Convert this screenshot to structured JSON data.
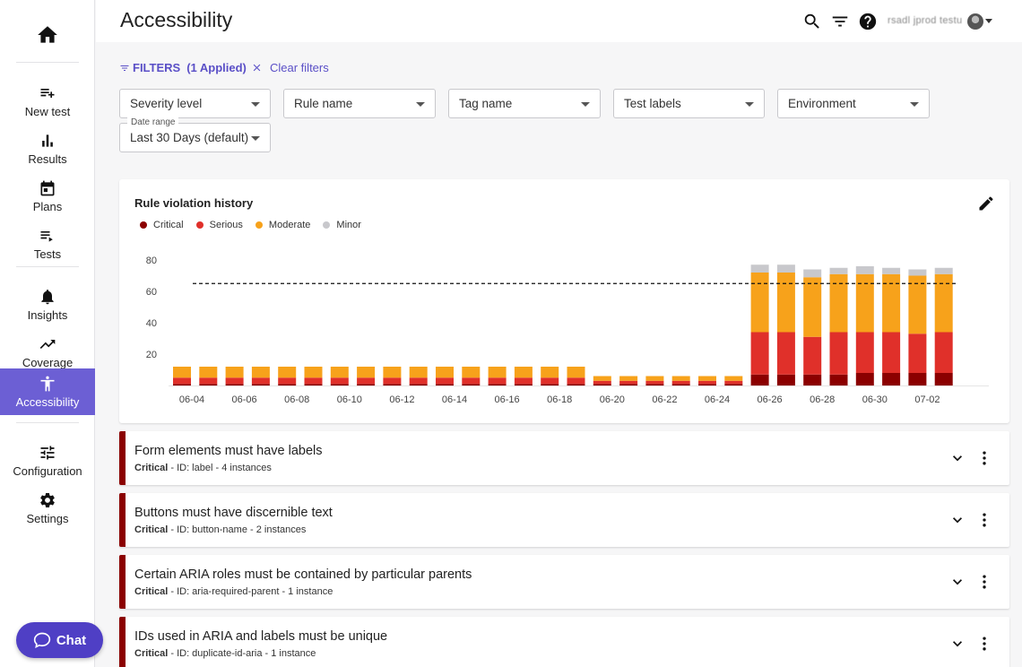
{
  "sidebar": {
    "home_icon": "home-icon",
    "items": [
      {
        "label": "New test",
        "icon": "playlist-add-icon"
      },
      {
        "label": "Results",
        "icon": "bar-chart-icon"
      },
      {
        "label": "Plans",
        "icon": "calendar-icon"
      },
      {
        "label": "Tests",
        "icon": "list-play-icon"
      },
      {
        "label": "Insights",
        "icon": "bell-icon"
      },
      {
        "label": "Coverage",
        "icon": "trending-up-icon"
      },
      {
        "label": "Accessibility",
        "icon": "accessibility-icon",
        "active": true
      },
      {
        "label": "Configuration",
        "icon": "tune-icon"
      },
      {
        "label": "Settings",
        "icon": "gear-icon"
      }
    ],
    "chat_label": "Chat"
  },
  "header": {
    "title": "Accessibility",
    "user_name": "rsadl jprod testu"
  },
  "filters": {
    "link_label": "FILTERS",
    "applied": "(1 Applied)",
    "clear_label": "Clear filters",
    "selects": [
      {
        "value": "Severity level"
      },
      {
        "value": "Rule name"
      },
      {
        "value": "Tag name"
      },
      {
        "value": "Test labels"
      },
      {
        "value": "Environment"
      }
    ],
    "date_range": {
      "label": "Date range",
      "value": "Last 30 Days (default)"
    }
  },
  "chart": {
    "title": "Rule violation history",
    "colors": {
      "critical": "#8b0000",
      "serious": "#e0302a",
      "moderate": "#f7a21b",
      "minor": "#c8c8cc"
    }
  },
  "chart_data": {
    "type": "bar",
    "stacked": true,
    "title": "Rule violation history",
    "legend": "top-left",
    "grid": false,
    "ylim": [
      0,
      80
    ],
    "yticks": [
      20,
      40,
      60,
      80
    ],
    "threshold": 65,
    "categories": [
      "06-04",
      "06-05",
      "06-06",
      "06-07",
      "06-08",
      "06-09",
      "06-10",
      "06-11",
      "06-12",
      "06-13",
      "06-14",
      "06-15",
      "06-16",
      "06-17",
      "06-18",
      "06-19",
      "06-20",
      "06-21",
      "06-22",
      "06-23",
      "06-24",
      "06-25",
      "06-26",
      "06-27",
      "06-28",
      "06-29",
      "06-30",
      "07-01",
      "07-02",
      "07-03"
    ],
    "xtick_labels": [
      "06-04",
      "06-06",
      "06-08",
      "06-10",
      "06-12",
      "06-14",
      "06-16",
      "06-18",
      "06-20",
      "06-22",
      "06-24",
      "06-26",
      "06-28",
      "06-30",
      "07-02"
    ],
    "series": [
      {
        "name": "Critical",
        "values": [
          1,
          1,
          1,
          1,
          1,
          1,
          1,
          1,
          1,
          1,
          1,
          1,
          1,
          1,
          1,
          1,
          1,
          1,
          1,
          1,
          1,
          1,
          7,
          7,
          7,
          7,
          8,
          8,
          8,
          8
        ]
      },
      {
        "name": "Serious",
        "values": [
          4,
          4,
          4,
          4,
          4,
          4,
          4,
          4,
          4,
          4,
          4,
          4,
          4,
          4,
          4,
          4,
          2,
          2,
          2,
          2,
          2,
          2,
          27,
          27,
          24,
          27,
          26,
          26,
          25,
          26
        ]
      },
      {
        "name": "Moderate",
        "values": [
          7,
          7,
          7,
          7,
          7,
          7,
          7,
          7,
          7,
          7,
          7,
          7,
          7,
          7,
          7,
          7,
          3,
          3,
          3,
          3,
          3,
          3,
          38,
          38,
          38,
          37,
          37,
          37,
          37,
          37
        ]
      },
      {
        "name": "Minor",
        "values": [
          0,
          0,
          0,
          0,
          0,
          0,
          0,
          0,
          0,
          0,
          0,
          0,
          0,
          0,
          0,
          0,
          0,
          0,
          0,
          0,
          0,
          0,
          5,
          5,
          5,
          4,
          5,
          4,
          4,
          4
        ]
      }
    ]
  },
  "rules": [
    {
      "title": "Form elements must have labels",
      "severity": "Critical",
      "details": " - ID: label - 4 instances"
    },
    {
      "title": "Buttons must have discernible text",
      "severity": "Critical",
      "details": " - ID: button-name - 2 instances"
    },
    {
      "title": "Certain ARIA roles must be contained by particular parents",
      "severity": "Critical",
      "details": " - ID: aria-required-parent - 1 instance"
    },
    {
      "title": "IDs used in ARIA and labels must be unique",
      "severity": "Critical",
      "details": " - ID: duplicate-id-aria - 1 instance"
    }
  ]
}
